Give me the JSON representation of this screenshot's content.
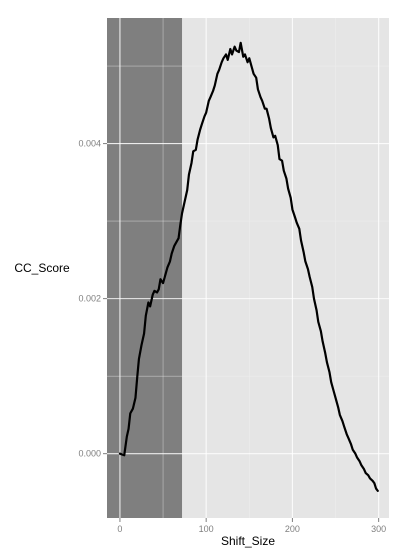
{
  "chart_data": {
    "type": "line",
    "xlabel": "Shift_Size",
    "ylabel": "CC_Score",
    "xlim": [
      -15,
      312
    ],
    "ylim": [
      -0.00083,
      0.00562
    ],
    "x_ticks": [
      0,
      100,
      200,
      300
    ],
    "x_tick_labels": [
      "0",
      "100",
      "200",
      "300"
    ],
    "y_ticks": [
      0.0,
      0.002,
      0.004
    ],
    "y_tick_labels": [
      "0.000",
      "0.002",
      "0.004"
    ],
    "grid": true,
    "shaded_region": {
      "x_from": -15,
      "x_to": 72,
      "color": "#7f7f7f"
    },
    "series": [
      {
        "color": "#000000",
        "x": [
          0,
          5,
          8,
          10,
          12,
          15,
          18,
          20,
          22,
          25,
          28,
          30,
          33,
          35,
          38,
          40,
          43,
          45,
          47,
          50,
          53,
          55,
          58,
          60,
          63,
          65,
          68,
          70,
          72,
          75,
          78,
          80,
          83,
          85,
          88,
          90,
          93,
          95,
          98,
          100,
          103,
          105,
          108,
          110,
          113,
          115,
          118,
          120,
          123,
          125,
          128,
          130,
          133,
          135,
          138,
          140,
          143,
          145,
          148,
          150,
          153,
          155,
          158,
          160,
          163,
          165,
          168,
          170,
          173,
          175,
          178,
          180,
          183,
          185,
          188,
          190,
          193,
          195,
          198,
          200,
          203,
          205,
          208,
          210,
          213,
          215,
          218,
          220,
          223,
          225,
          228,
          230,
          233,
          235,
          238,
          240,
          243,
          245,
          248,
          250,
          253,
          255,
          258,
          260,
          263,
          265,
          268,
          270,
          273,
          275,
          278,
          280,
          283,
          285,
          288,
          290,
          293,
          295,
          297,
          299
        ],
        "y": [
          0.0,
          -2e-05,
          0.00022,
          0.00032,
          0.00052,
          0.00058,
          0.00072,
          0.00098,
          0.00122,
          0.0014,
          0.00155,
          0.00178,
          0.00195,
          0.0019,
          0.00205,
          0.0021,
          0.00208,
          0.00212,
          0.00225,
          0.0022,
          0.00232,
          0.0024,
          0.00248,
          0.00258,
          0.00268,
          0.00272,
          0.00278,
          0.00295,
          0.0031,
          0.00325,
          0.0034,
          0.0036,
          0.00375,
          0.0039,
          0.00392,
          0.00405,
          0.00418,
          0.00425,
          0.00435,
          0.0044,
          0.00455,
          0.0046,
          0.00468,
          0.00475,
          0.0049,
          0.00495,
          0.00505,
          0.0051,
          0.00515,
          0.00508,
          0.00522,
          0.00515,
          0.00525,
          0.0052,
          0.00518,
          0.0053,
          0.00512,
          0.00515,
          0.00505,
          0.0051,
          0.00498,
          0.0049,
          0.00485,
          0.0047,
          0.0046,
          0.00455,
          0.00445,
          0.00445,
          0.00432,
          0.0042,
          0.00408,
          0.0041,
          0.00398,
          0.0038,
          0.00378,
          0.00365,
          0.00355,
          0.00342,
          0.0033,
          0.00315,
          0.00305,
          0.00298,
          0.0029,
          0.00275,
          0.0026,
          0.00248,
          0.00238,
          0.00228,
          0.00215,
          0.002,
          0.00185,
          0.0017,
          0.00158,
          0.00145,
          0.0013,
          0.00118,
          0.00105,
          0.00092,
          0.0008,
          0.00072,
          0.0006,
          0.0005,
          0.00042,
          0.00035,
          0.00025,
          0.0002,
          0.00012,
          5e-05,
          0.0,
          -5e-05,
          -0.0001,
          -0.00015,
          -0.0002,
          -0.00025,
          -0.00028,
          -0.00032,
          -0.00035,
          -0.00038,
          -0.00045,
          -0.00048
        ]
      }
    ]
  }
}
